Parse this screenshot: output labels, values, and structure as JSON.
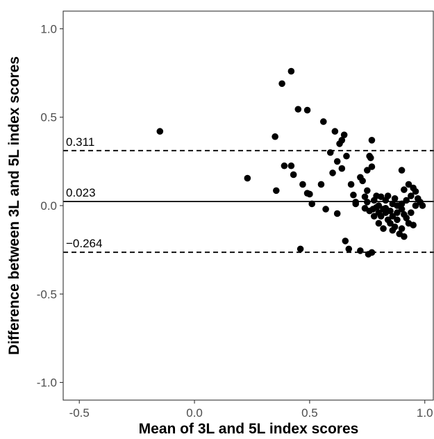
{
  "chart_data": {
    "type": "scatter",
    "title": "",
    "xlabel": "Mean of 3L and 5L index scores",
    "ylabel": "Difference between 3L and 5L index scores",
    "xlim": [
      -0.57,
      1.04
    ],
    "ylim": [
      -1.1,
      1.1
    ],
    "x_ticks": [
      -0.5,
      0.0,
      0.5,
      1.0
    ],
    "x_tick_labels": [
      "-0.5",
      "0.0",
      "0.5",
      "1.0"
    ],
    "y_ticks": [
      -1.0,
      -0.5,
      0.0,
      0.5,
      1.0
    ],
    "y_tick_labels": [
      "-1.0",
      "-0.5",
      "0.0",
      "0.5",
      "1.0"
    ],
    "grid": false,
    "reference_lines": [
      {
        "value": 0.311,
        "label": "0.311",
        "style": "dashed"
      },
      {
        "value": 0.023,
        "label": "0.023",
        "style": "solid"
      },
      {
        "value": -0.264,
        "label": "−0.264",
        "style": "dashed"
      }
    ],
    "points": [
      [
        -0.15,
        0.42
      ],
      [
        0.23,
        0.155
      ],
      [
        0.35,
        0.39
      ],
      [
        0.355,
        0.085
      ],
      [
        0.38,
        0.69
      ],
      [
        0.42,
        0.76
      ],
      [
        0.39,
        0.225
      ],
      [
        0.42,
        0.225
      ],
      [
        0.43,
        0.175
      ],
      [
        0.45,
        0.545
      ],
      [
        0.46,
        -0.245
      ],
      [
        0.47,
        0.12
      ],
      [
        0.49,
        0.54
      ],
      [
        0.49,
        0.07
      ],
      [
        0.5,
        0.065
      ],
      [
        0.51,
        0.01
      ],
      [
        0.55,
        0.12
      ],
      [
        0.56,
        0.475
      ],
      [
        0.57,
        -0.02
      ],
      [
        0.59,
        0.3
      ],
      [
        0.6,
        0.185
      ],
      [
        0.61,
        0.42
      ],
      [
        0.62,
        0.25
      ],
      [
        0.62,
        -0.045
      ],
      [
        0.63,
        0.35
      ],
      [
        0.64,
        0.37
      ],
      [
        0.64,
        0.21
      ],
      [
        0.65,
        0.4
      ],
      [
        0.655,
        -0.2
      ],
      [
        0.66,
        0.28
      ],
      [
        0.67,
        -0.245
      ],
      [
        0.68,
        0.12
      ],
      [
        0.69,
        0.06
      ],
      [
        0.7,
        0.01
      ],
      [
        0.72,
        0.16
      ],
      [
        0.72,
        -0.255
      ],
      [
        0.73,
        0.14
      ],
      [
        0.74,
        -0.015
      ],
      [
        0.75,
        0.2
      ],
      [
        0.75,
        0.085
      ],
      [
        0.75,
        0.02
      ],
      [
        0.755,
        -0.275
      ],
      [
        0.76,
        0.28
      ],
      [
        0.765,
        0.27
      ],
      [
        0.77,
        0.37
      ],
      [
        0.77,
        0.22
      ],
      [
        0.77,
        -0.265
      ],
      [
        0.775,
        -0.02
      ],
      [
        0.78,
        0.03
      ],
      [
        0.78,
        -0.06
      ],
      [
        0.79,
        0.055
      ],
      [
        0.79,
        -0.01
      ],
      [
        0.8,
        0.0
      ],
      [
        0.8,
        -0.1
      ],
      [
        0.81,
        0.05
      ],
      [
        0.81,
        -0.06
      ],
      [
        0.82,
        -0.02
      ],
      [
        0.82,
        -0.13
      ],
      [
        0.83,
        0.03
      ],
      [
        0.83,
        -0.04
      ],
      [
        0.84,
        -0.08
      ],
      [
        0.84,
        0.055
      ],
      [
        0.85,
        -0.03
      ],
      [
        0.85,
        -0.1
      ],
      [
        0.86,
        0.01
      ],
      [
        0.86,
        -0.06
      ],
      [
        0.87,
        0.04
      ],
      [
        0.87,
        -0.12
      ],
      [
        0.88,
        0.0
      ],
      [
        0.88,
        -0.08
      ],
      [
        0.89,
        -0.16
      ],
      [
        0.89,
        0.0
      ],
      [
        0.9,
        0.2
      ],
      [
        0.9,
        -0.02
      ],
      [
        0.9,
        -0.13
      ],
      [
        0.91,
        0.09
      ],
      [
        0.91,
        -0.05
      ],
      [
        0.91,
        -0.175
      ],
      [
        0.92,
        0.03
      ],
      [
        0.92,
        -0.07
      ],
      [
        0.93,
        0.12
      ],
      [
        0.93,
        -0.1
      ],
      [
        0.94,
        0.055
      ],
      [
        0.94,
        -0.04
      ],
      [
        0.95,
        0.1
      ],
      [
        0.95,
        -0.11
      ],
      [
        0.96,
        0.08
      ],
      [
        0.96,
        0.0
      ],
      [
        0.97,
        0.04
      ],
      [
        0.98,
        0.02
      ],
      [
        0.99,
        0.0
      ],
      [
        0.9,
        0.01
      ],
      [
        0.88,
        -0.04
      ],
      [
        0.86,
        -0.14
      ],
      [
        0.83,
        -0.015
      ],
      [
        0.8,
        -0.04
      ],
      [
        0.76,
        -0.03
      ],
      [
        0.74,
        0.05
      ],
      [
        0.7,
        0.02
      ]
    ]
  }
}
